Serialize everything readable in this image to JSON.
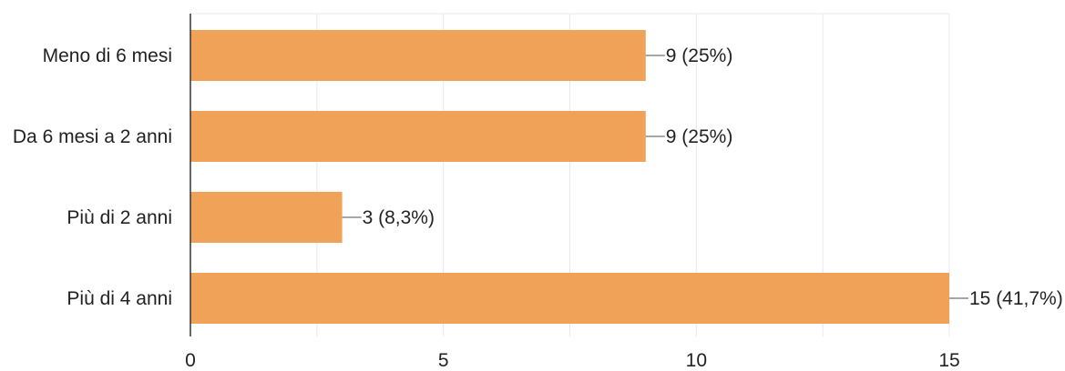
{
  "chart_data": {
    "type": "bar",
    "orientation": "horizontal",
    "categories": [
      "Meno di 6 mesi",
      "Da 6 mesi a 2 anni",
      "Più di 2 anni",
      "Più di 4 anni"
    ],
    "values": [
      9,
      9,
      3,
      15
    ],
    "data_labels": [
      "9 (25%)",
      "9 (25%)",
      "3 (8,3%)",
      "15 (41,7%)"
    ],
    "x_ticks": [
      0,
      5,
      10,
      15
    ],
    "x_tick_labels": [
      "0",
      "5",
      "10",
      "15"
    ],
    "xlim": [
      0,
      15
    ],
    "grid": true,
    "legend": false,
    "bar_color": "#f0a358",
    "grid_color": "#e8e8e8",
    "axis_color": "#333333"
  }
}
